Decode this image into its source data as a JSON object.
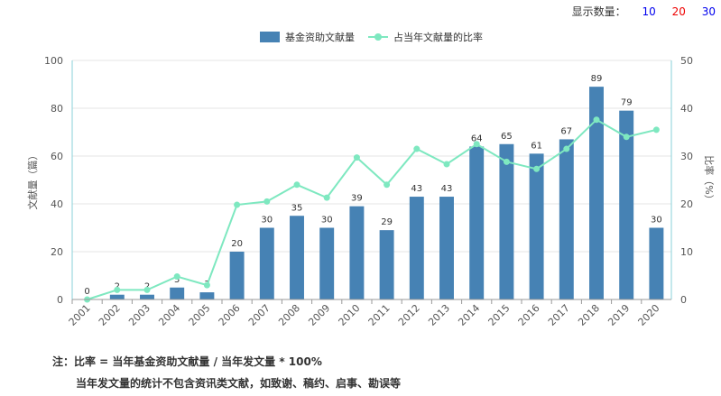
{
  "display": {
    "label": "显示数量：",
    "options": [
      {
        "text": "10",
        "color": "#0000ee"
      },
      {
        "text": "20",
        "color": "#ee0000"
      },
      {
        "text": "30",
        "color": "#0000ee"
      }
    ]
  },
  "notes": {
    "line1": "注：比率 = 当年基金资助文献量 / 当年发文量 * 100%",
    "line2": "当年发文量的统计不包含资讯类文献，如致谢、稿约、启事、勘误等"
  },
  "colors": {
    "bar": "#4682b4",
    "line": "#7ee8c0",
    "axis": "#8ad1d8"
  },
  "chart_data": {
    "type": "bar",
    "categories": [
      "2001",
      "2002",
      "2003",
      "2004",
      "2005",
      "2006",
      "2007",
      "2008",
      "2009",
      "2010",
      "2011",
      "2012",
      "2013",
      "2014",
      "2015",
      "2016",
      "2017",
      "2018",
      "2019",
      "2020"
    ],
    "series": [
      {
        "name": "基金资助文献量",
        "type": "bar",
        "axis": "left",
        "values": [
          0,
          2,
          2,
          5,
          3,
          20,
          30,
          35,
          30,
          39,
          29,
          43,
          43,
          64,
          65,
          61,
          67,
          89,
          79,
          30
        ]
      },
      {
        "name": "占当年文献量的比率",
        "type": "line",
        "axis": "right",
        "values": [
          0,
          2.0,
          2.0,
          4.8,
          3.0,
          19.8,
          20.5,
          24.0,
          21.3,
          29.7,
          24.0,
          31.5,
          28.3,
          32.5,
          28.8,
          27.3,
          31.5,
          37.6,
          34.0,
          35.5
        ]
      }
    ],
    "ylabel_left": "文献量（篇）",
    "ylabel_right": "比率（%）",
    "ylim_left": [
      0,
      100
    ],
    "ylim_right": [
      0,
      50
    ],
    "yticks_left": [
      "0",
      "20",
      "40",
      "60",
      "80",
      "100"
    ],
    "yticks_right": [
      "0",
      "10",
      "20",
      "30",
      "40",
      "50"
    ],
    "legend_position": "top-center",
    "grid": true
  }
}
